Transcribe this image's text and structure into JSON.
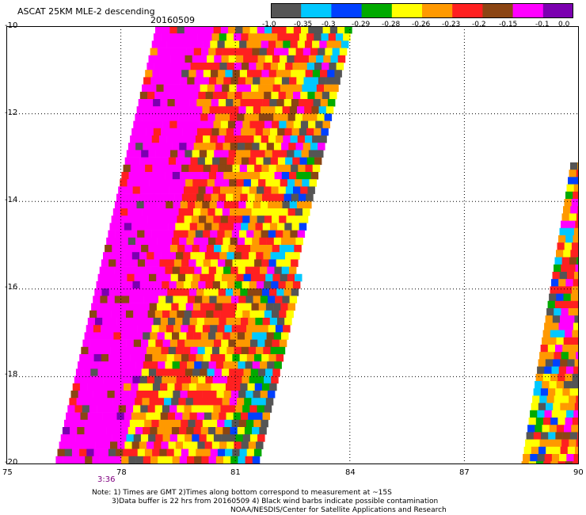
{
  "header": {
    "title": "ASCAT 25KM MLE-2 descending",
    "date": "20160509"
  },
  "colorbar": {
    "colors": [
      "#555555",
      "#00c8ff",
      "#0040ff",
      "#00aa00",
      "#ffff00",
      "#ff9900",
      "#ff2020",
      "#8b4513",
      "#ff00ff",
      "#7b00b0"
    ],
    "labels": [
      "-1.0",
      "-0.35",
      "-0.3",
      "-0.29",
      "-0.28",
      "-0.26",
      "-0.23",
      "-0.2",
      "-0.15",
      "-0.1",
      "0.0"
    ]
  },
  "map": {
    "lon_labels": [
      "75",
      "78",
      "81",
      "84",
      "87",
      "90"
    ],
    "lat_labels": [
      "-10",
      "-12",
      "-14",
      "-16",
      "-18",
      "-20"
    ],
    "lon_range": [
      75,
      90
    ],
    "lat_range": [
      -20,
      -10
    ],
    "grid": "dotted",
    "time_label": "3:36"
  },
  "notes": {
    "line1": "Note: 1) Times are GMT 2)Times along bottom correspond to measurement at ~15S",
    "line2": "3)Data buffer is 22 hrs from 20160509 4) Black wind barbs indicate possible contamination",
    "line3": "NOAA/NESDIS/Center for Satellite Applications and Research"
  }
}
